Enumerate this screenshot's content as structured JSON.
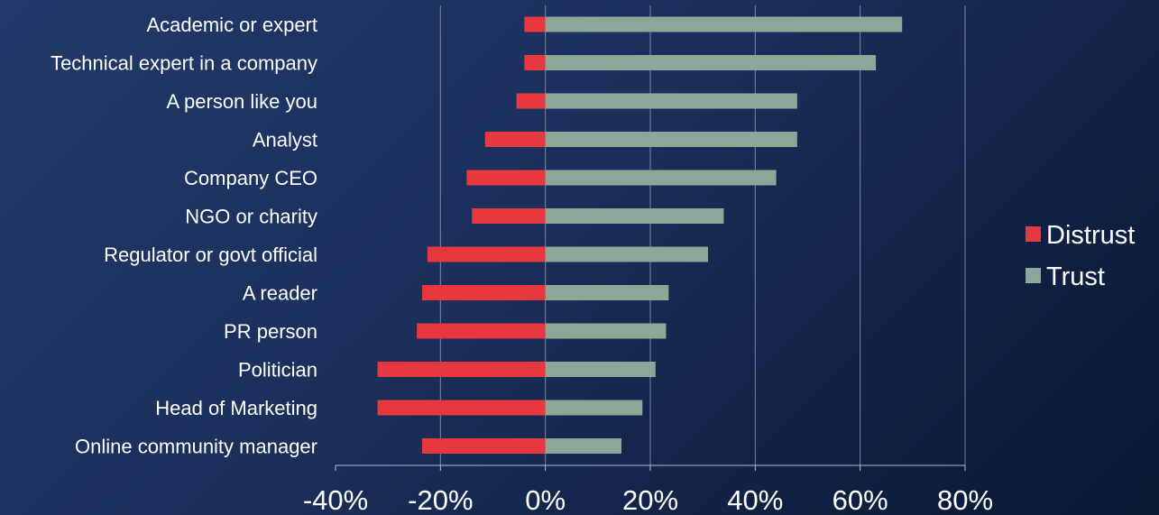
{
  "chart_data": {
    "type": "bar",
    "orientation": "horizontal",
    "stacked": "diverging",
    "categories": [
      "Academic or expert",
      "Technical expert in a company",
      "A person like you",
      "Analyst",
      "Company CEO",
      "NGO or charity",
      "Regulator or govt official",
      "A reader",
      "PR person",
      "Politician",
      "Head of Marketing",
      "Online community manager"
    ],
    "series": [
      {
        "name": "Distrust",
        "color": "#e8383f",
        "values": [
          -4,
          -4,
          -5.5,
          -11.5,
          -15,
          -14,
          -22.5,
          -23.5,
          -24.5,
          -32,
          -32,
          -23.5
        ]
      },
      {
        "name": "Trust",
        "color": "#8aa898",
        "values": [
          68,
          63,
          48,
          48,
          44,
          34,
          31,
          23.5,
          23,
          21,
          18.5,
          14.5
        ]
      }
    ],
    "xlim": [
      -40,
      80
    ],
    "xticks": [
      "-40%",
      "-20%",
      "0%",
      "20%",
      "40%",
      "60%",
      "80%"
    ],
    "xtick_values": [
      -40,
      -20,
      0,
      20,
      40,
      60,
      80
    ],
    "grid": "vertical",
    "legend": "right"
  }
}
